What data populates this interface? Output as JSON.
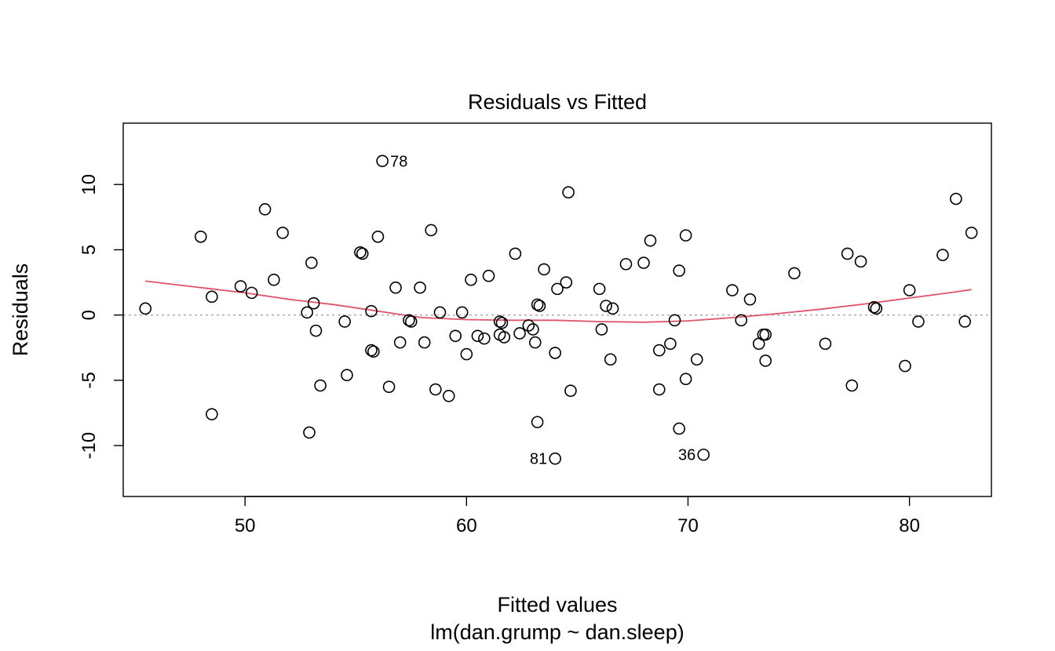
{
  "chart_data": {
    "type": "scatter",
    "title": "Residuals vs Fitted",
    "xlabel": "Fitted values",
    "subtitle": "lm(dan.grump ~ dan.sleep)",
    "ylabel": "Residuals",
    "xlim": [
      44.5,
      83.7
    ],
    "ylim": [
      -13.9,
      14.7
    ],
    "xticks": [
      50,
      60,
      70,
      80
    ],
    "yticks": [
      -10,
      -5,
      0,
      5,
      10
    ],
    "reference_line": {
      "y": 0,
      "style": "dotted",
      "color": "#b0b0b0"
    },
    "smooth_color": "#df536b",
    "point_color": "#000000",
    "points": [
      {
        "x": 45.5,
        "y": 0.5
      },
      {
        "x": 48.0,
        "y": 6.0
      },
      {
        "x": 48.5,
        "y": 1.4
      },
      {
        "x": 48.5,
        "y": -7.6
      },
      {
        "x": 49.8,
        "y": 2.2
      },
      {
        "x": 50.3,
        "y": 1.7
      },
      {
        "x": 50.9,
        "y": 8.1
      },
      {
        "x": 51.3,
        "y": 2.7
      },
      {
        "x": 51.7,
        "y": 6.3
      },
      {
        "x": 52.8,
        "y": 0.2
      },
      {
        "x": 52.9,
        "y": -9.0
      },
      {
        "x": 53.0,
        "y": 4.0
      },
      {
        "x": 53.1,
        "y": 0.9
      },
      {
        "x": 53.2,
        "y": -1.2
      },
      {
        "x": 53.4,
        "y": -5.4
      },
      {
        "x": 54.5,
        "y": -0.5
      },
      {
        "x": 54.6,
        "y": -4.6
      },
      {
        "x": 55.2,
        "y": 4.8
      },
      {
        "x": 55.3,
        "y": 4.7
      },
      {
        "x": 55.7,
        "y": 0.3
      },
      {
        "x": 55.7,
        "y": -2.7
      },
      {
        "x": 55.8,
        "y": -2.8
      },
      {
        "x": 56.0,
        "y": 6.0
      },
      {
        "x": 56.2,
        "y": 11.8
      },
      {
        "x": 56.5,
        "y": -5.5
      },
      {
        "x": 56.8,
        "y": 2.1
      },
      {
        "x": 57.0,
        "y": -2.1
      },
      {
        "x": 57.4,
        "y": -0.4
      },
      {
        "x": 57.5,
        "y": -0.5
      },
      {
        "x": 57.9,
        "y": 2.1
      },
      {
        "x": 58.1,
        "y": -2.1
      },
      {
        "x": 58.4,
        "y": 6.5
      },
      {
        "x": 58.6,
        "y": -5.7
      },
      {
        "x": 58.8,
        "y": 0.2
      },
      {
        "x": 59.2,
        "y": -6.2
      },
      {
        "x": 59.5,
        "y": -1.6
      },
      {
        "x": 59.8,
        "y": 0.2
      },
      {
        "x": 60.0,
        "y": -3.0
      },
      {
        "x": 60.2,
        "y": 2.7
      },
      {
        "x": 60.5,
        "y": -1.6
      },
      {
        "x": 60.8,
        "y": -1.8
      },
      {
        "x": 61.0,
        "y": 3.0
      },
      {
        "x": 61.5,
        "y": -0.5
      },
      {
        "x": 61.5,
        "y": -1.5
      },
      {
        "x": 61.6,
        "y": -0.6
      },
      {
        "x": 61.7,
        "y": -1.7
      },
      {
        "x": 62.2,
        "y": 4.7
      },
      {
        "x": 62.4,
        "y": -1.4
      },
      {
        "x": 62.8,
        "y": -0.8
      },
      {
        "x": 63.0,
        "y": -1.1
      },
      {
        "x": 63.1,
        "y": -2.1
      },
      {
        "x": 63.2,
        "y": 0.8
      },
      {
        "x": 63.3,
        "y": 0.7
      },
      {
        "x": 63.2,
        "y": -8.2
      },
      {
        "x": 63.5,
        "y": 3.5
      },
      {
        "x": 64.0,
        "y": -2.9
      },
      {
        "x": 64.1,
        "y": 2.0
      },
      {
        "x": 64.0,
        "y": -11.0
      },
      {
        "x": 64.5,
        "y": 2.5
      },
      {
        "x": 64.6,
        "y": 9.4
      },
      {
        "x": 64.7,
        "y": -5.8
      },
      {
        "x": 66.0,
        "y": 2.0
      },
      {
        "x": 66.1,
        "y": -1.1
      },
      {
        "x": 66.3,
        "y": 0.7
      },
      {
        "x": 66.5,
        "y": -3.4
      },
      {
        "x": 66.6,
        "y": 0.5
      },
      {
        "x": 67.2,
        "y": 3.9
      },
      {
        "x": 68.0,
        "y": 4.0
      },
      {
        "x": 68.3,
        "y": 5.7
      },
      {
        "x": 68.7,
        "y": -2.7
      },
      {
        "x": 68.7,
        "y": -5.7
      },
      {
        "x": 69.2,
        "y": -2.2
      },
      {
        "x": 69.4,
        "y": -0.4
      },
      {
        "x": 69.6,
        "y": 3.4
      },
      {
        "x": 69.6,
        "y": -8.7
      },
      {
        "x": 69.9,
        "y": -4.9
      },
      {
        "x": 69.9,
        "y": 6.1
      },
      {
        "x": 70.4,
        "y": -3.4
      },
      {
        "x": 70.7,
        "y": -10.7
      },
      {
        "x": 72.0,
        "y": 1.9
      },
      {
        "x": 72.4,
        "y": -0.4
      },
      {
        "x": 72.8,
        "y": 1.2
      },
      {
        "x": 73.2,
        "y": -2.2
      },
      {
        "x": 73.4,
        "y": -1.5
      },
      {
        "x": 73.5,
        "y": -1.5
      },
      {
        "x": 73.5,
        "y": -3.5
      },
      {
        "x": 74.8,
        "y": 3.2
      },
      {
        "x": 76.2,
        "y": -2.2
      },
      {
        "x": 77.2,
        "y": 4.7
      },
      {
        "x": 77.4,
        "y": -5.4
      },
      {
        "x": 77.8,
        "y": 4.1
      },
      {
        "x": 78.4,
        "y": 0.6
      },
      {
        "x": 78.5,
        "y": 0.5
      },
      {
        "x": 79.8,
        "y": -3.9
      },
      {
        "x": 80.0,
        "y": 1.9
      },
      {
        "x": 80.4,
        "y": -0.5
      },
      {
        "x": 81.5,
        "y": 4.6
      },
      {
        "x": 82.1,
        "y": 8.9
      },
      {
        "x": 82.5,
        "y": -0.5
      },
      {
        "x": 82.8,
        "y": 6.3
      }
    ],
    "labeled_points": [
      {
        "label": "78",
        "x": 56.2,
        "y": 11.8,
        "side": "right"
      },
      {
        "label": "81",
        "x": 64.0,
        "y": -11.0,
        "side": "left"
      },
      {
        "label": "36",
        "x": 70.7,
        "y": -10.7,
        "side": "left"
      }
    ],
    "smooth_line": [
      {
        "x": 45.5,
        "y": 2.6
      },
      {
        "x": 48.0,
        "y": 2.1
      },
      {
        "x": 50.0,
        "y": 1.7
      },
      {
        "x": 52.0,
        "y": 1.2
      },
      {
        "x": 54.0,
        "y": 0.8
      },
      {
        "x": 56.0,
        "y": 0.3
      },
      {
        "x": 58.0,
        "y": -0.2
      },
      {
        "x": 60.0,
        "y": -0.35
      },
      {
        "x": 62.0,
        "y": -0.4
      },
      {
        "x": 64.0,
        "y": -0.4
      },
      {
        "x": 66.0,
        "y": -0.5
      },
      {
        "x": 68.0,
        "y": -0.55
      },
      {
        "x": 70.0,
        "y": -0.45
      },
      {
        "x": 72.0,
        "y": -0.2
      },
      {
        "x": 74.0,
        "y": 0.1
      },
      {
        "x": 76.0,
        "y": 0.45
      },
      {
        "x": 78.0,
        "y": 0.85
      },
      {
        "x": 80.0,
        "y": 1.3
      },
      {
        "x": 82.0,
        "y": 1.75
      },
      {
        "x": 82.8,
        "y": 1.95
      }
    ]
  }
}
